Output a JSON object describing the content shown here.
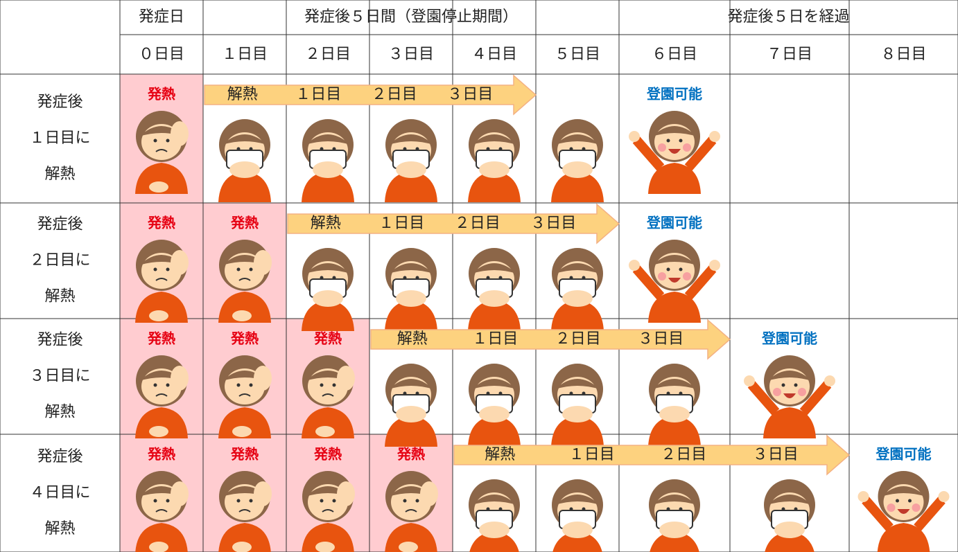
{
  "header": {
    "top": [
      "発症日",
      "発症後５日間（登園停止期間）",
      "発症後５日を経過"
    ],
    "days": [
      "０日目",
      "１日目",
      "２日目",
      "３日目",
      "４日目",
      "５日目",
      "６日目",
      "７日目",
      "８日目"
    ]
  },
  "rows": [
    {
      "label": [
        "発症後",
        "１日目に",
        "解熱"
      ],
      "fever": [
        "発熱"
      ],
      "arrow": [
        "解熱",
        "１日目",
        "２日目",
        "３日目"
      ],
      "ok": "登園可能"
    },
    {
      "label": [
        "発症後",
        "２日目に",
        "解熱"
      ],
      "fever": [
        "発熱",
        "発熱"
      ],
      "arrow": [
        "解熱",
        "１日目",
        "２日目",
        "３日目"
      ],
      "ok": "登園可能"
    },
    {
      "label": [
        "発症後",
        "３日目に",
        "解熱"
      ],
      "fever": [
        "発熱",
        "発熱",
        "発熱"
      ],
      "arrow": [
        "解熱",
        "１日目",
        "２日目",
        "３日目"
      ],
      "ok": "登園可能"
    },
    {
      "label": [
        "発症後",
        "４日目に",
        "解熱"
      ],
      "fever": [
        "発熱",
        "発熱",
        "発熱",
        "発熱"
      ],
      "arrow": [
        "解熱",
        "１日目",
        "２日目",
        "３日目"
      ],
      "ok": "登園可能"
    }
  ]
}
